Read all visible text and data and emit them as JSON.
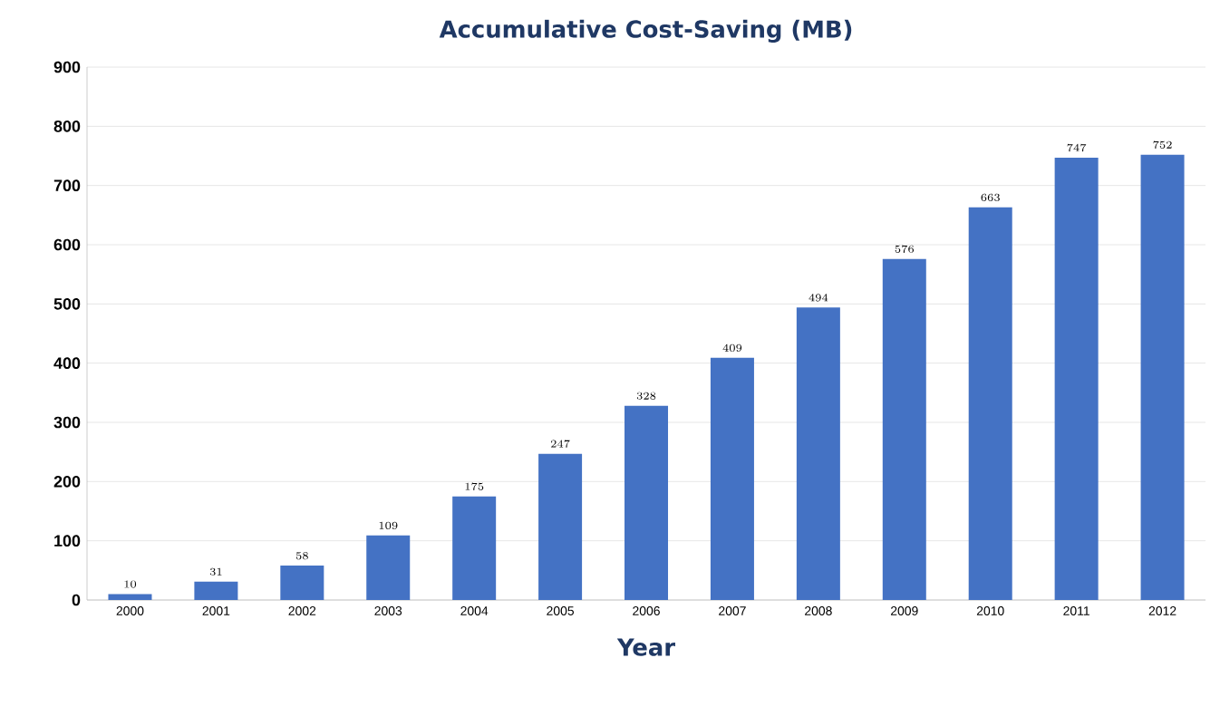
{
  "chart_data": {
    "type": "bar",
    "title": "Accumulative Cost-Saving (MB)",
    "xlabel": "Year",
    "categories": [
      "2000",
      "2001",
      "2002",
      "2003",
      "2004",
      "2005",
      "2006",
      "2007",
      "2008",
      "2009",
      "2010",
      "2011",
      "2012"
    ],
    "values": [
      10,
      31,
      58,
      109,
      175,
      247,
      328,
      409,
      494,
      576,
      663,
      747,
      752
    ],
    "color": "#4472c4",
    "ylim": [
      0,
      900
    ],
    "yticks": [
      0,
      100,
      200,
      300,
      400,
      500,
      600,
      700,
      800,
      900
    ],
    "grid": "y",
    "data_labels": true
  }
}
